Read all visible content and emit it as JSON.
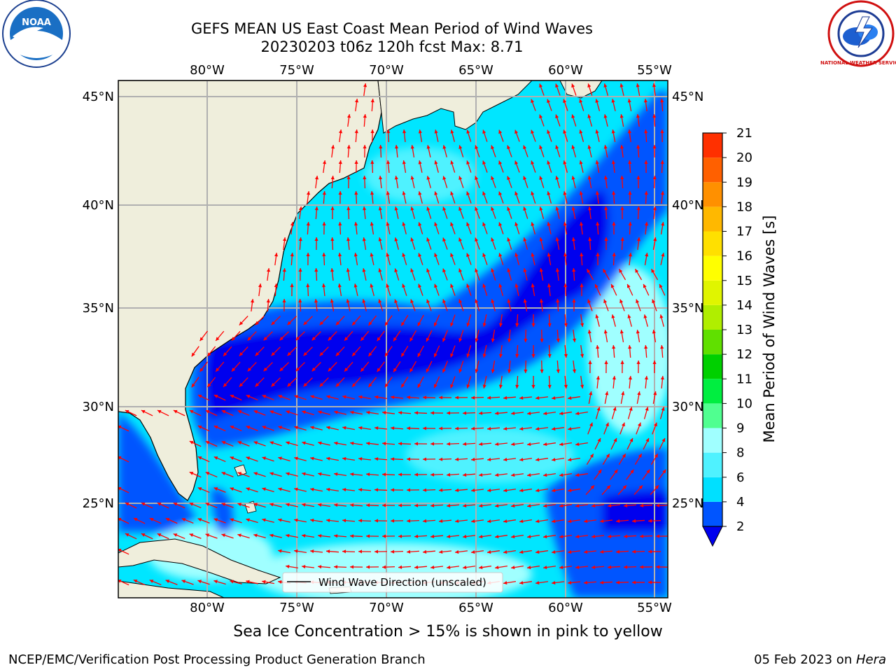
{
  "title_line1": "GEFS MEAN US East Coast Mean Period of Wind Waves",
  "title_line2": "20230203 t06z 120h fcst   Max: 8.71",
  "map": {
    "lon_labels": [
      "80°W",
      "75°W",
      "70°W",
      "65°W",
      "60°W",
      "55°W"
    ],
    "lat_labels": [
      "45°N",
      "40°N",
      "35°N",
      "30°N",
      "25°N"
    ],
    "legend_label": "Wind Wave Direction (unscaled)",
    "land_color": "#efeedc",
    "arrow_color": "#ff0000"
  },
  "colorbar": {
    "label": "Mean Period of Wind Waves [s]",
    "ticks": [
      "2",
      "4",
      "6",
      "8",
      "9",
      "10",
      "11",
      "12",
      "13",
      "14",
      "15",
      "16",
      "17",
      "18",
      "19",
      "20",
      "21"
    ],
    "colors": [
      "#0055ff",
      "#00e0ff",
      "#4ff2ff",
      "#a0ffff",
      "#50ff90",
      "#00ee40",
      "#00d000",
      "#60e000",
      "#b0ee00",
      "#e0f500",
      "#ffff00",
      "#ffe000",
      "#ffb800",
      "#ff9000",
      "#ff6000",
      "#ff3000",
      "#ff0000"
    ],
    "under_color": "#0000ee"
  },
  "footnote": "Sea Ice Concentration > 15% is shown in pink to yellow",
  "credit_left": "NCEP/EMC/Verification Post Processing Product Generation Branch",
  "credit_right_prefix": "05 Feb 2023 on ",
  "credit_right_host": "Hera",
  "logos": {
    "noaa_text": "NOAA",
    "nws_text": "NATIONAL WEATHER SERVICE"
  }
}
